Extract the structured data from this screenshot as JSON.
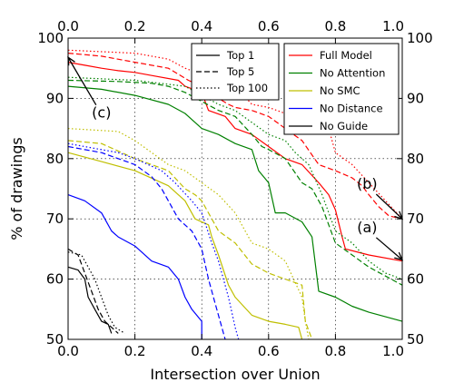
{
  "chart_data": {
    "type": "line",
    "title": "",
    "xlabel": "Intersection over Union",
    "ylabel": "% of drawings",
    "xlim": [
      0,
      1
    ],
    "ylim": [
      50,
      100
    ],
    "xticks": [
      "0.0",
      "0.2",
      "0.4",
      "0.6",
      "0.8",
      "1.0"
    ],
    "yticks": [
      "50",
      "60",
      "70",
      "80",
      "90",
      "100"
    ],
    "grid": true,
    "legend_styles": {
      "placement": "top-center",
      "entries": [
        {
          "label": "Top 1",
          "style": "solid"
        },
        {
          "label": "Top 5",
          "style": "dashed"
        },
        {
          "label": "Top 100",
          "style": "dotted"
        }
      ]
    },
    "legend_models": {
      "placement": "top-right",
      "entries": [
        {
          "label": "Full Model",
          "color": "#ff0000"
        },
        {
          "label": "No Attention",
          "color": "#008000"
        },
        {
          "label": "No SMC",
          "color": "#bfbf00"
        },
        {
          "label": "No Distance",
          "color": "#0000ff"
        },
        {
          "label": "No Guide",
          "color": "#000000"
        }
      ]
    },
    "annotations": [
      {
        "text": "(a)",
        "target": [
          1.0,
          63.2
        ],
        "textpos": [
          0.895,
          67.8
        ]
      },
      {
        "text": "(b)",
        "target": [
          1.0,
          70.0
        ],
        "textpos": [
          0.895,
          75.0
        ]
      },
      {
        "text": "(c)",
        "target": [
          0.0,
          96.8
        ],
        "textpos": [
          0.1,
          86.8
        ]
      }
    ],
    "series": [
      {
        "name": "Full Model",
        "variant": "Top 1",
        "color": "#ff0000",
        "style": "solid",
        "points": [
          [
            0,
            96
          ],
          [
            0.05,
            95.5
          ],
          [
            0.1,
            95
          ],
          [
            0.15,
            94.6
          ],
          [
            0.2,
            94.3
          ],
          [
            0.25,
            93.8
          ],
          [
            0.33,
            93
          ],
          [
            0.35,
            92
          ],
          [
            0.4,
            91
          ],
          [
            0.42,
            88
          ],
          [
            0.47,
            87
          ],
          [
            0.5,
            85
          ],
          [
            0.55,
            84
          ],
          [
            0.6,
            82
          ],
          [
            0.65,
            80
          ],
          [
            0.7,
            79
          ],
          [
            0.75,
            76
          ],
          [
            0.78,
            74
          ],
          [
            0.8,
            71.5
          ],
          [
            0.82,
            67
          ],
          [
            0.83,
            65
          ],
          [
            0.9,
            64
          ],
          [
            1,
            63
          ]
        ]
      },
      {
        "name": "Full Model",
        "variant": "Top 5",
        "color": "#ff0000",
        "style": "dashed",
        "points": [
          [
            0,
            97.5
          ],
          [
            0.1,
            97
          ],
          [
            0.2,
            96
          ],
          [
            0.3,
            95
          ],
          [
            0.33,
            94
          ],
          [
            0.36,
            93
          ],
          [
            0.4,
            92
          ],
          [
            0.45,
            90
          ],
          [
            0.48,
            89
          ],
          [
            0.5,
            88.5
          ],
          [
            0.55,
            88
          ],
          [
            0.6,
            87
          ],
          [
            0.65,
            85
          ],
          [
            0.7,
            83
          ],
          [
            0.75,
            79
          ],
          [
            0.8,
            78
          ],
          [
            0.85,
            76.8
          ],
          [
            0.88,
            75.5
          ],
          [
            0.9,
            74
          ],
          [
            0.93,
            72
          ],
          [
            0.96,
            70.5
          ],
          [
            1,
            70
          ]
        ]
      },
      {
        "name": "Full Model",
        "variant": "Top 100",
        "color": "#ff0000",
        "style": "dotted",
        "points": [
          [
            0,
            98
          ],
          [
            0.2,
            97.5
          ],
          [
            0.3,
            96.5
          ],
          [
            0.35,
            95
          ],
          [
            0.45,
            93
          ],
          [
            0.5,
            92
          ],
          [
            0.55,
            89
          ],
          [
            0.6,
            88.5
          ],
          [
            0.65,
            87.5
          ],
          [
            0.7,
            86.5
          ],
          [
            0.78,
            85
          ],
          [
            0.8,
            81
          ],
          [
            0.85,
            79
          ],
          [
            0.9,
            76
          ],
          [
            0.95,
            73
          ],
          [
            1,
            70
          ]
        ]
      },
      {
        "name": "No Attention",
        "variant": "Top 1",
        "color": "#008000",
        "style": "solid",
        "points": [
          [
            0,
            92
          ],
          [
            0.1,
            91.5
          ],
          [
            0.2,
            90.5
          ],
          [
            0.3,
            89
          ],
          [
            0.35,
            87.5
          ],
          [
            0.4,
            85
          ],
          [
            0.45,
            84
          ],
          [
            0.5,
            82.5
          ],
          [
            0.55,
            81.5
          ],
          [
            0.57,
            78
          ],
          [
            0.6,
            76
          ],
          [
            0.62,
            71
          ],
          [
            0.65,
            71
          ],
          [
            0.7,
            69.5
          ],
          [
            0.73,
            67
          ],
          [
            0.75,
            58
          ],
          [
            0.8,
            57
          ],
          [
            0.85,
            55.5
          ],
          [
            0.9,
            54.5
          ],
          [
            1,
            53
          ]
        ]
      },
      {
        "name": "No Attention",
        "variant": "Top 5",
        "color": "#008000",
        "style": "dashed",
        "points": [
          [
            0,
            93
          ],
          [
            0.15,
            92.8
          ],
          [
            0.25,
            92.5
          ],
          [
            0.3,
            92
          ],
          [
            0.35,
            91
          ],
          [
            0.45,
            88
          ],
          [
            0.5,
            87
          ],
          [
            0.55,
            84
          ],
          [
            0.58,
            82
          ],
          [
            0.6,
            81.5
          ],
          [
            0.65,
            80
          ],
          [
            0.7,
            76
          ],
          [
            0.73,
            75
          ],
          [
            0.76,
            72
          ],
          [
            0.8,
            66
          ],
          [
            0.85,
            64
          ],
          [
            0.9,
            62
          ],
          [
            1,
            59
          ]
        ]
      },
      {
        "name": "No Attention",
        "variant": "Top 100",
        "color": "#008000",
        "style": "dotted",
        "points": [
          [
            0,
            93.5
          ],
          [
            0.2,
            93
          ],
          [
            0.35,
            92
          ],
          [
            0.45,
            89
          ],
          [
            0.5,
            88
          ],
          [
            0.55,
            86
          ],
          [
            0.6,
            84
          ],
          [
            0.65,
            83
          ],
          [
            0.68,
            81
          ],
          [
            0.72,
            79
          ],
          [
            0.76,
            74
          ],
          [
            0.8,
            68
          ],
          [
            0.85,
            66
          ],
          [
            0.9,
            63
          ],
          [
            0.95,
            61
          ],
          [
            1,
            60
          ]
        ]
      },
      {
        "name": "No SMC",
        "variant": "Top 1",
        "color": "#bfbf00",
        "style": "solid",
        "points": [
          [
            0,
            81
          ],
          [
            0.1,
            79.5
          ],
          [
            0.2,
            78
          ],
          [
            0.3,
            75.5
          ],
          [
            0.35,
            73
          ],
          [
            0.38,
            70
          ],
          [
            0.42,
            69
          ],
          [
            0.43,
            67
          ],
          [
            0.45,
            64
          ],
          [
            0.48,
            59
          ],
          [
            0.5,
            57
          ],
          [
            0.55,
            54
          ],
          [
            0.6,
            53
          ],
          [
            0.65,
            52.5
          ],
          [
            0.69,
            52
          ],
          [
            0.7,
            50
          ]
        ]
      },
      {
        "name": "No SMC",
        "variant": "Top 5",
        "color": "#bfbf00",
        "style": "dashed",
        "points": [
          [
            0,
            83
          ],
          [
            0.1,
            82.5
          ],
          [
            0.2,
            80
          ],
          [
            0.3,
            78
          ],
          [
            0.35,
            75
          ],
          [
            0.38,
            74
          ],
          [
            0.4,
            73
          ],
          [
            0.45,
            68
          ],
          [
            0.5,
            66
          ],
          [
            0.55,
            62.5
          ],
          [
            0.6,
            61
          ],
          [
            0.65,
            60
          ],
          [
            0.7,
            59
          ],
          [
            0.71,
            53
          ],
          [
            0.73,
            50
          ]
        ]
      },
      {
        "name": "No SMC",
        "variant": "Top 100",
        "color": "#bfbf00",
        "style": "dotted",
        "points": [
          [
            0,
            85
          ],
          [
            0.15,
            84.5
          ],
          [
            0.2,
            83
          ],
          [
            0.3,
            79
          ],
          [
            0.35,
            78
          ],
          [
            0.4,
            76
          ],
          [
            0.45,
            74
          ],
          [
            0.5,
            71
          ],
          [
            0.55,
            66
          ],
          [
            0.6,
            65
          ],
          [
            0.65,
            63
          ],
          [
            0.7,
            57
          ],
          [
            0.71,
            53
          ],
          [
            0.72,
            50
          ]
        ]
      },
      {
        "name": "No Distance",
        "variant": "Top 1",
        "color": "#0000ff",
        "style": "solid",
        "points": [
          [
            0,
            74
          ],
          [
            0.05,
            73
          ],
          [
            0.1,
            71
          ],
          [
            0.13,
            68
          ],
          [
            0.15,
            67
          ],
          [
            0.2,
            65.5
          ],
          [
            0.25,
            63
          ],
          [
            0.3,
            62
          ],
          [
            0.33,
            60
          ],
          [
            0.35,
            57
          ],
          [
            0.37,
            55
          ],
          [
            0.4,
            53
          ],
          [
            0.4,
            50
          ]
        ]
      },
      {
        "name": "No Distance",
        "variant": "Top 5",
        "color": "#0000ff",
        "style": "dashed",
        "points": [
          [
            0,
            82
          ],
          [
            0.1,
            81
          ],
          [
            0.2,
            79
          ],
          [
            0.25,
            77
          ],
          [
            0.28,
            75
          ],
          [
            0.3,
            73
          ],
          [
            0.33,
            70
          ],
          [
            0.37,
            68
          ],
          [
            0.4,
            65
          ],
          [
            0.42,
            60
          ],
          [
            0.44,
            56
          ],
          [
            0.46,
            52
          ],
          [
            0.47,
            50
          ]
        ]
      },
      {
        "name": "No Distance",
        "variant": "Top 100",
        "color": "#0000ff",
        "style": "dotted",
        "points": [
          [
            0,
            82.5
          ],
          [
            0.15,
            81
          ],
          [
            0.2,
            80
          ],
          [
            0.28,
            78
          ],
          [
            0.32,
            76
          ],
          [
            0.37,
            73
          ],
          [
            0.4,
            71
          ],
          [
            0.43,
            66
          ],
          [
            0.45,
            63
          ],
          [
            0.48,
            57
          ],
          [
            0.5,
            52
          ],
          [
            0.51,
            50
          ]
        ]
      },
      {
        "name": "No Guide",
        "variant": "Top 1",
        "color": "#000000",
        "style": "solid",
        "points": [
          [
            0,
            62
          ],
          [
            0.03,
            61.5
          ],
          [
            0.05,
            60
          ],
          [
            0.06,
            57
          ],
          [
            0.08,
            55
          ],
          [
            0.1,
            53
          ],
          [
            0.12,
            52.5
          ],
          [
            0.13,
            51
          ]
        ]
      },
      {
        "name": "No Guide",
        "variant": "Top 5",
        "color": "#000000",
        "style": "dashed",
        "points": [
          [
            0,
            65
          ],
          [
            0.03,
            64
          ],
          [
            0.05,
            61
          ],
          [
            0.07,
            58
          ],
          [
            0.09,
            55
          ],
          [
            0.11,
            53
          ],
          [
            0.13,
            52
          ],
          [
            0.15,
            51
          ]
        ]
      },
      {
        "name": "No Guide",
        "variant": "Top 100",
        "color": "#000000",
        "style": "dotted",
        "points": [
          [
            0,
            64.5
          ],
          [
            0.04,
            64
          ],
          [
            0.06,
            62
          ],
          [
            0.08,
            60
          ],
          [
            0.1,
            57
          ],
          [
            0.12,
            54
          ],
          [
            0.14,
            52
          ],
          [
            0.17,
            51
          ]
        ]
      }
    ]
  }
}
